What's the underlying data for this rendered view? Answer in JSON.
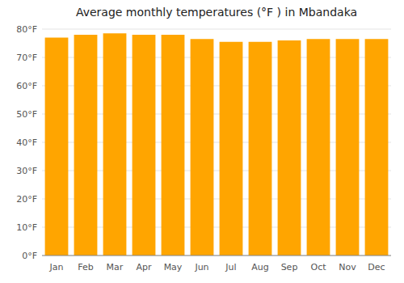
{
  "chart_data": {
    "type": "bar",
    "title": "Average monthly temperatures (°F ) in Mbandaka",
    "categories": [
      "Jan",
      "Feb",
      "Mar",
      "Apr",
      "May",
      "Jun",
      "Jul",
      "Aug",
      "Sep",
      "Oct",
      "Nov",
      "Dec"
    ],
    "values": [
      77,
      78,
      78.5,
      78,
      78,
      76.5,
      75.5,
      75.5,
      76,
      76.5,
      76.5,
      76.5
    ],
    "color": "#FFA500",
    "ylim": [
      0,
      80
    ],
    "yticks": [
      {
        "value": 0,
        "label": "0°F"
      },
      {
        "value": 10,
        "label": "10°F"
      },
      {
        "value": 20,
        "label": "20°F"
      },
      {
        "value": 30,
        "label": "30°F"
      },
      {
        "value": 40,
        "label": "40°F"
      },
      {
        "value": 50,
        "label": "50°F"
      },
      {
        "value": 60,
        "label": "60°F"
      },
      {
        "value": 70,
        "label": "70°F"
      },
      {
        "value": 80,
        "label": "80°F"
      }
    ],
    "grid": true
  }
}
